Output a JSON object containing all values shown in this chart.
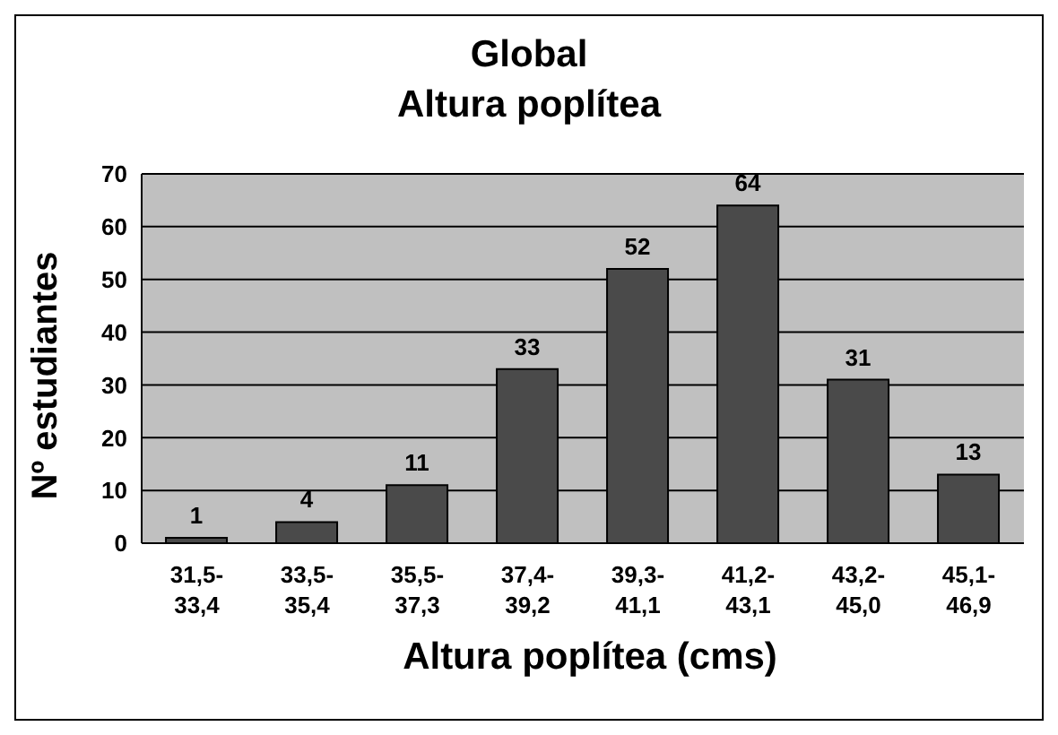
{
  "chart_data": {
    "type": "bar",
    "title": "Global",
    "subtitle": "Altura poplítea",
    "xlabel": "Altura poplítea (cms)",
    "ylabel": "Nº estudiantes",
    "categories": [
      "31,5-33,4",
      "33,5-35,4",
      "35,5-37,3",
      "37,4-39,2",
      "39,3-41,1",
      "41,2-43,1",
      "43,2-45,0",
      "45,1-46,9"
    ],
    "values": [
      1,
      4,
      11,
      33,
      52,
      64,
      31,
      13
    ],
    "color": "#4a4a4a",
    "ylim": [
      0,
      70
    ],
    "yticks": [
      0,
      10,
      20,
      30,
      40,
      50,
      60,
      70
    ],
    "grid": "y",
    "data_labels": true
  }
}
